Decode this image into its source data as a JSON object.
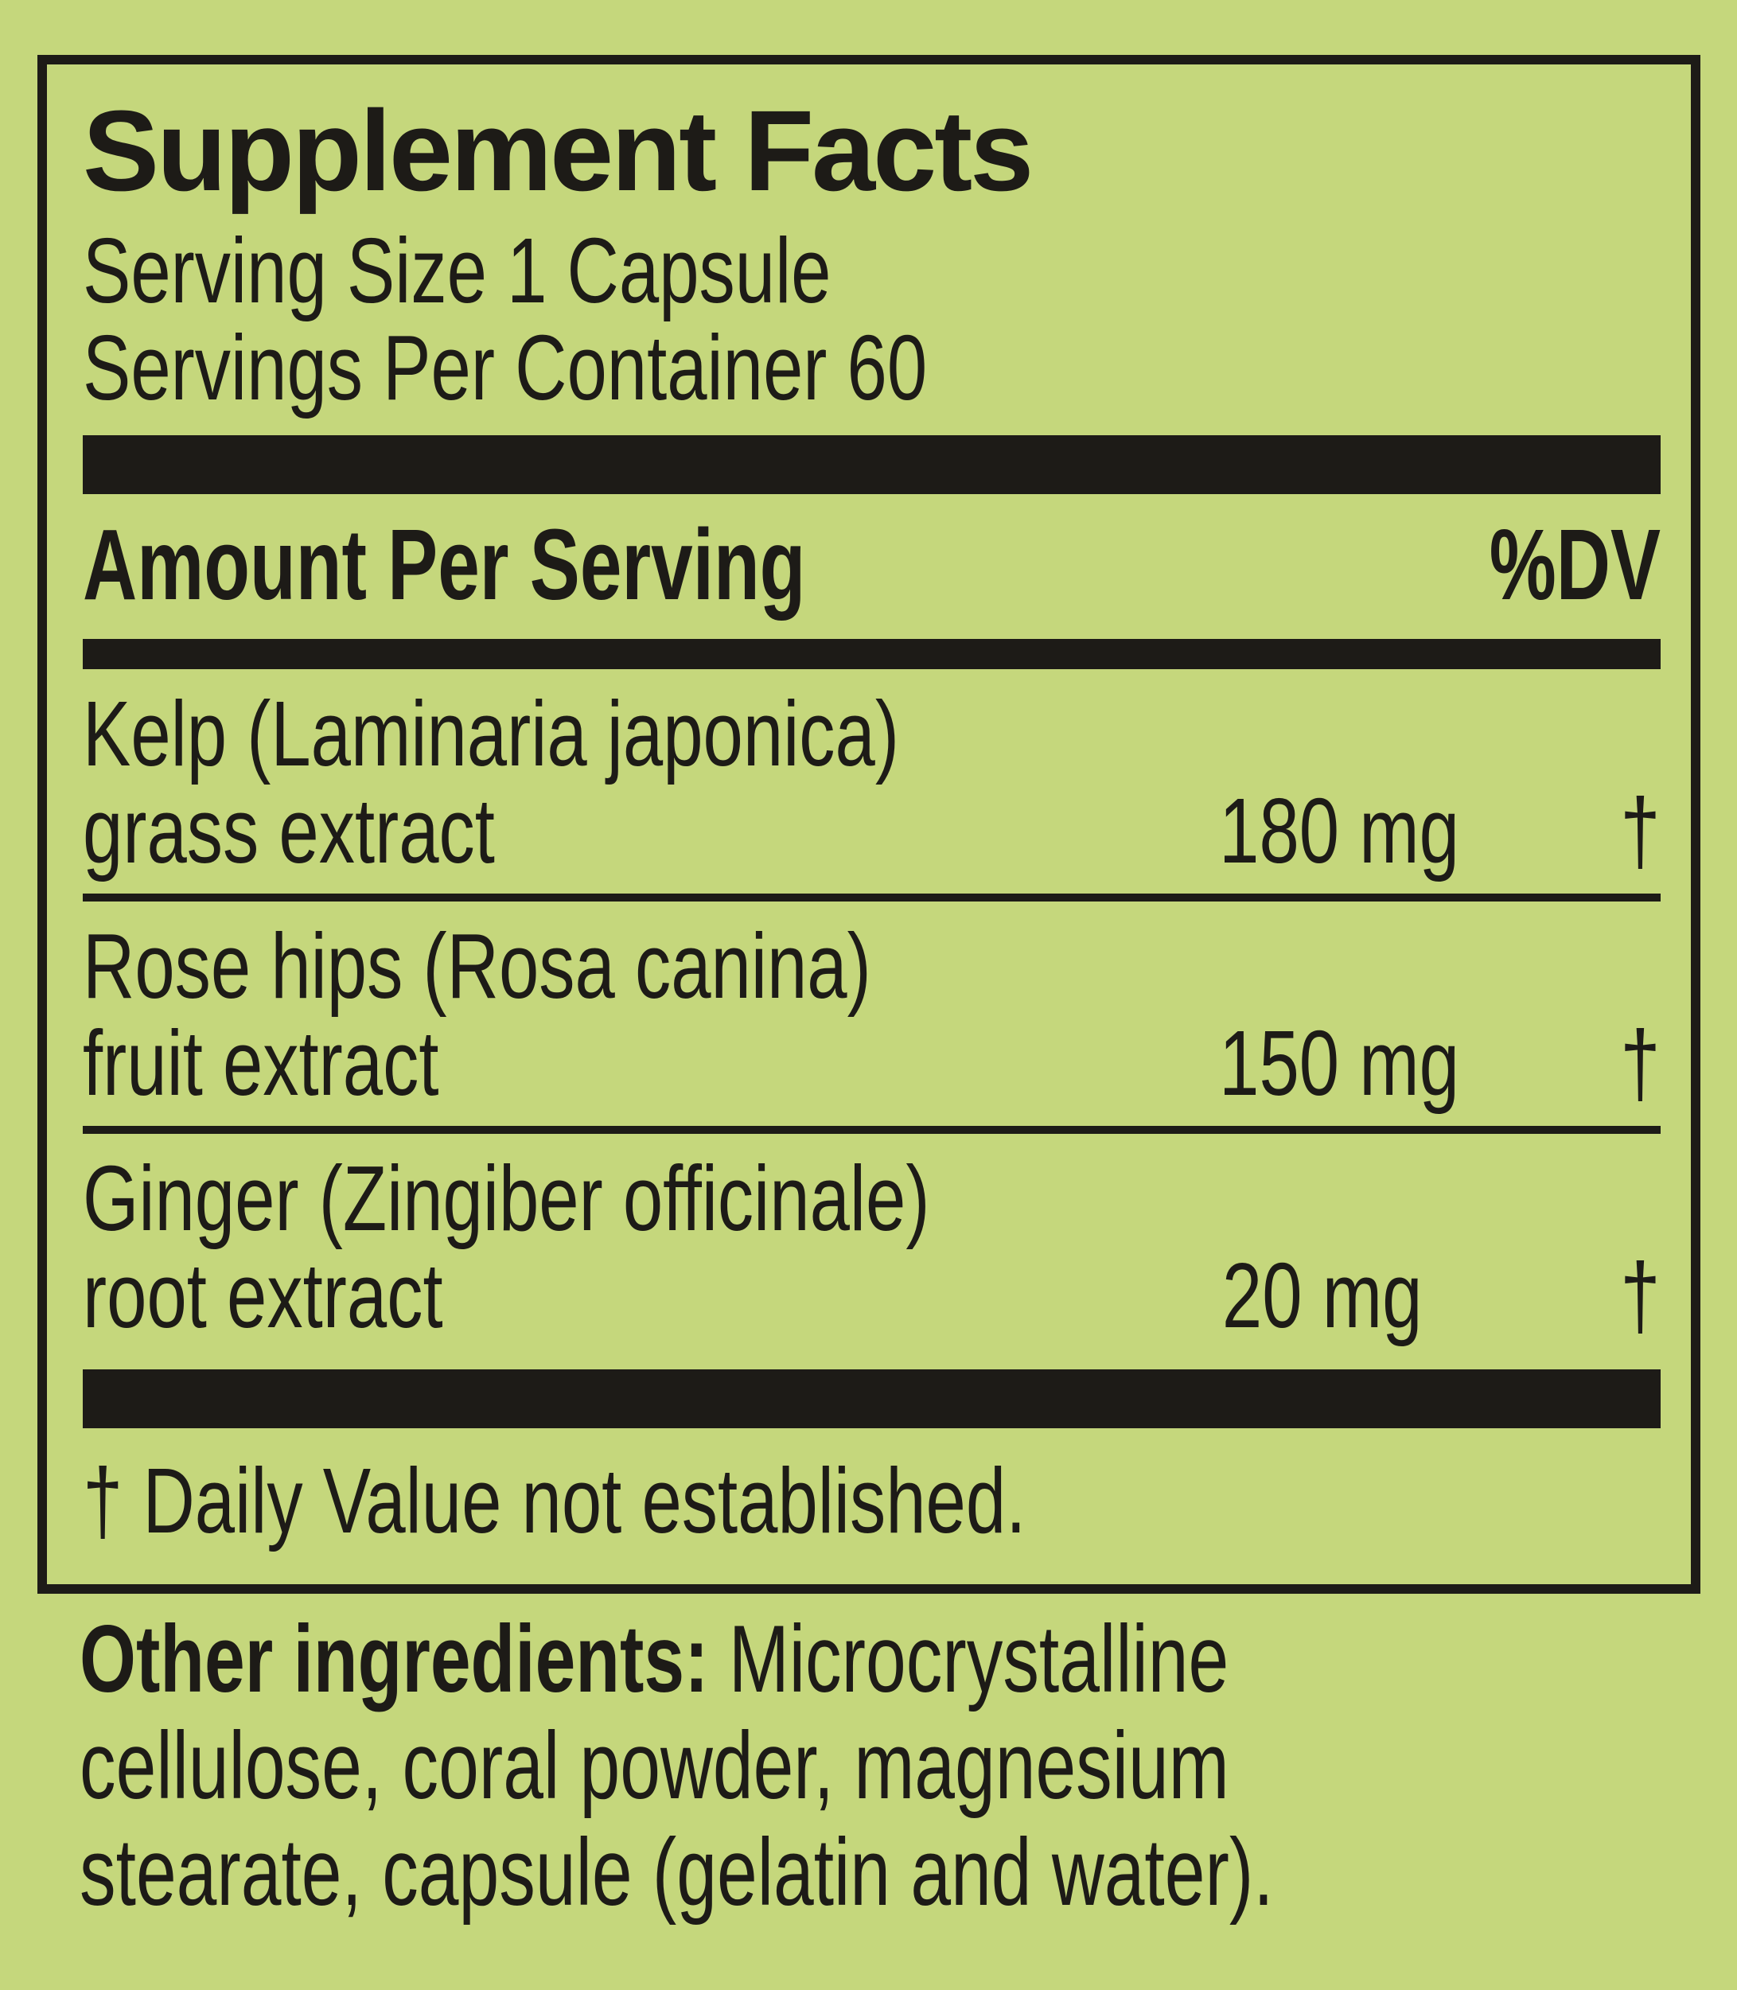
{
  "colors": {
    "background": "#c5d77c",
    "ink": "#1d1b17"
  },
  "panel": {
    "title": "Supplement Facts",
    "serving_size": "Serving Size 1 Capsule",
    "servings_per_container": "Servings Per Container 60",
    "header": {
      "amount_label": "Amount Per Serving",
      "dv_label": "%DV"
    },
    "rows": [
      {
        "name_line": "Kelp (Laminaria japonica)",
        "part_line": "grass extract",
        "amount": "180 mg",
        "dv": "†"
      },
      {
        "name_line": "Rose hips (Rosa canina)",
        "part_line": "fruit extract",
        "amount": "150 mg",
        "dv": "†"
      },
      {
        "name_line": "Ginger (Zingiber officinale)",
        "part_line": "root extract",
        "amount": "20 mg",
        "dv": "†"
      }
    ],
    "footnote": "† Daily Value not established."
  },
  "other_ingredients": {
    "label": "Other ingredients:",
    "line1_rest": " Microcrystalline",
    "line2": "cellulose, coral powder, magnesium",
    "line3": "stearate, capsule (gelatin and water)."
  }
}
